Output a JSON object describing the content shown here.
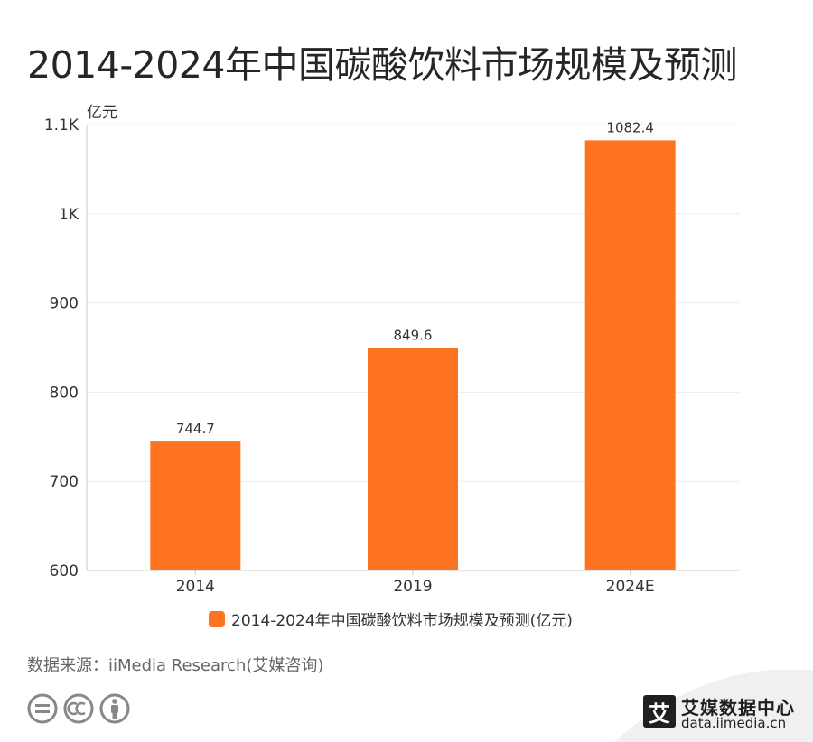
{
  "title": "2014-2024年中国碳酸饮料市场规模及预测",
  "source": "数据来源：iiMedia Research(艾媒咨询)",
  "brand": {
    "logo_char": "艾",
    "name": "艾媒数据中心",
    "url": "data.iimedia.cn"
  },
  "colors": {
    "bar": "#fe731f",
    "grid": "#ececec",
    "axis": "#c8c8c8",
    "text": "#333333"
  },
  "chart_data": {
    "type": "bar",
    "title": "2014-2024年中国碳酸饮料市场规模及预测",
    "ylabel": "亿元",
    "categories": [
      "2014",
      "2019",
      "2024E"
    ],
    "series": [
      {
        "name": "2014-2024年中国碳酸饮料市场规模及预测(亿元)",
        "values": [
          744.7,
          849.6,
          1082.4
        ],
        "labels": [
          "744.7",
          "849.6",
          "1082.4"
        ]
      }
    ],
    "ylim": [
      600,
      1100
    ],
    "yticks": [
      600,
      700,
      800,
      900,
      1000,
      1100
    ],
    "ytick_labels": [
      "600",
      "700",
      "800",
      "900",
      "1K",
      "1.1K"
    ],
    "grid": true,
    "legend": "bottom"
  }
}
